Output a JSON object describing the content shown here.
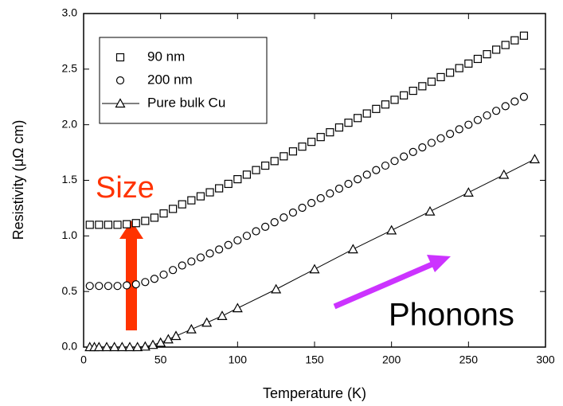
{
  "chart_data": {
    "type": "scatter",
    "xlabel": "Temperature (K)",
    "ylabel": "Resistivity (μΩ cm)",
    "xlim": [
      0,
      300
    ],
    "ylim": [
      0,
      3
    ],
    "xticks": [
      0,
      50,
      100,
      150,
      200,
      250,
      300
    ],
    "yticks": [
      {
        "value": 0,
        "label": "0.0"
      },
      0.5,
      {
        "value": 1,
        "label": "1.0"
      },
      1.5,
      {
        "value": 2,
        "label": "2.0"
      },
      2.5,
      {
        "value": 3,
        "label": "3.0"
      }
    ],
    "annotations": [
      "Size",
      "Phonons"
    ],
    "series": [
      {
        "name": "90 nm",
        "marker": "square",
        "color": "#000000",
        "x": [
          4,
          10,
          16,
          22,
          28,
          34,
          40,
          46,
          52,
          58,
          64,
          70,
          76,
          82,
          88,
          94,
          100,
          106,
          112,
          118,
          124,
          130,
          136,
          142,
          148,
          154,
          160,
          166,
          172,
          178,
          184,
          190,
          196,
          202,
          208,
          214,
          220,
          226,
          232,
          238,
          244,
          250,
          256,
          262,
          268,
          274,
          280,
          286
        ],
        "values": [
          1.1,
          1.1,
          1.1,
          1.1,
          1.105,
          1.115,
          1.135,
          1.164,
          1.202,
          1.243,
          1.284,
          1.32,
          1.356,
          1.392,
          1.428,
          1.468,
          1.51,
          1.551,
          1.592,
          1.632,
          1.673,
          1.716,
          1.76,
          1.803,
          1.846,
          1.889,
          1.932,
          1.975,
          2.018,
          2.06,
          2.101,
          2.142,
          2.182,
          2.224,
          2.264,
          2.305,
          2.346,
          2.387,
          2.428,
          2.468,
          2.509,
          2.55,
          2.592,
          2.634,
          2.675,
          2.717,
          2.759,
          2.801
        ]
      },
      {
        "name": "200 nm",
        "marker": "circle",
        "color": "#000000",
        "x": [
          4,
          10,
          16,
          22,
          28,
          34,
          40,
          46,
          52,
          58,
          64,
          70,
          76,
          82,
          88,
          94,
          100,
          106,
          112,
          118,
          124,
          130,
          136,
          142,
          148,
          154,
          160,
          166,
          172,
          178,
          184,
          190,
          196,
          202,
          208,
          214,
          220,
          226,
          232,
          238,
          244,
          250,
          256,
          262,
          268,
          274,
          280,
          286
        ],
        "values": [
          0.55,
          0.55,
          0.55,
          0.55,
          0.555,
          0.565,
          0.585,
          0.614,
          0.652,
          0.693,
          0.734,
          0.77,
          0.806,
          0.842,
          0.878,
          0.918,
          0.96,
          1.001,
          1.042,
          1.082,
          1.123,
          1.166,
          1.21,
          1.253,
          1.296,
          1.339,
          1.382,
          1.425,
          1.468,
          1.51,
          1.551,
          1.592,
          1.632,
          1.674,
          1.714,
          1.755,
          1.796,
          1.837,
          1.878,
          1.918,
          1.959,
          2.0,
          2.042,
          2.084,
          2.125,
          2.167,
          2.209,
          2.251
        ]
      },
      {
        "name": "Pure bulk Cu",
        "marker": "triangle",
        "line": true,
        "color": "#000000",
        "x": [
          4,
          7,
          10,
          15,
          20,
          25,
          30,
          35,
          40,
          45,
          50,
          55,
          60,
          70,
          80,
          90,
          100,
          125,
          150,
          175,
          200,
          225,
          250,
          273,
          293
        ],
        "values": [
          0,
          0,
          0,
          0,
          0,
          0,
          0,
          0,
          0.005,
          0.02,
          0.04,
          0.07,
          0.1,
          0.16,
          0.22,
          0.28,
          0.35,
          0.52,
          0.7,
          0.88,
          1.05,
          1.22,
          1.39,
          1.55,
          1.69
        ]
      }
    ]
  }
}
